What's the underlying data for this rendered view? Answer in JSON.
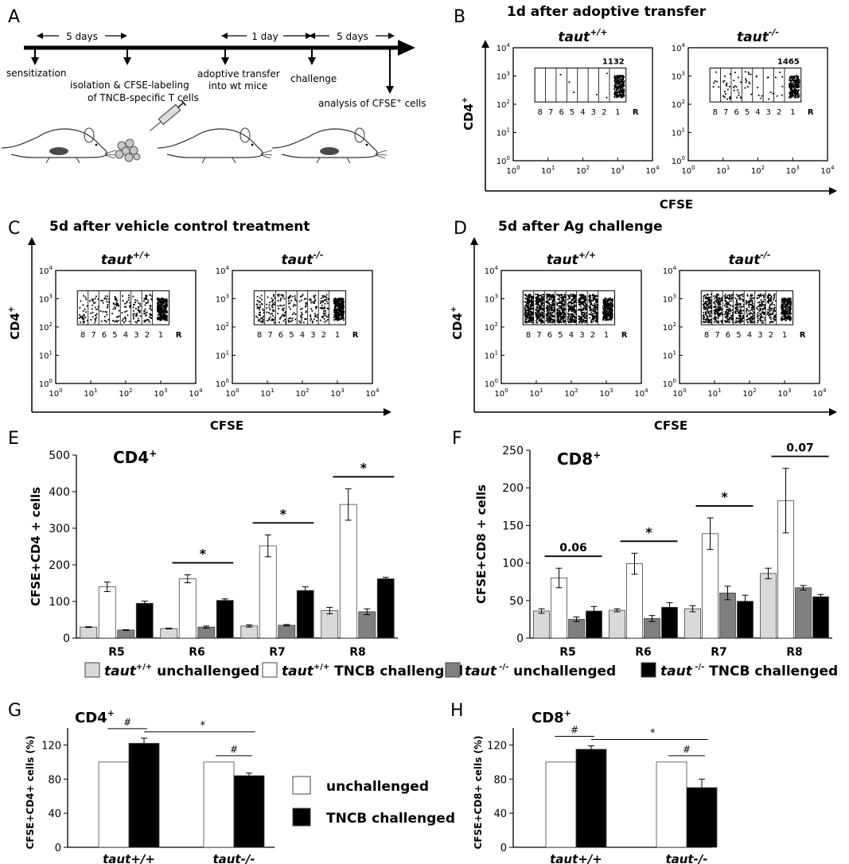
{
  "panels": {
    "A": {
      "letter": "A",
      "intervals": [
        "5 days",
        "1 day",
        "5 days"
      ],
      "steps": [
        "sensitization",
        "isolation & CFSE-labeling",
        "of TNCB-specific T cells",
        "adoptive transfer",
        "into wt mice",
        "challenge",
        "analysis of CFSE",
        "+",
        " cells"
      ]
    },
    "B": {
      "letter": "B",
      "title": "1d after adoptive transfer",
      "plots": [
        {
          "genotype": "taut",
          "sup": "+/+",
          "count": "1132",
          "density": [
            0,
            0,
            1,
            2,
            0,
            1,
            2,
            240
          ]
        },
        {
          "genotype": "taut",
          "sup": "-/-",
          "count": "1465",
          "density": [
            6,
            18,
            14,
            12,
            6,
            5,
            6,
            230
          ]
        }
      ]
    },
    "C": {
      "letter": "C",
      "title": "5d after vehicle control treatment",
      "plots": [
        {
          "genotype": "taut",
          "sup": "+/+",
          "count": "",
          "density": [
            30,
            28,
            26,
            30,
            26,
            36,
            50,
            320
          ]
        },
        {
          "genotype": "taut",
          "sup": "-/-",
          "count": "",
          "density": [
            45,
            40,
            38,
            32,
            30,
            32,
            50,
            300
          ]
        }
      ]
    },
    "D": {
      "letter": "D",
      "title": "5d after Ag challenge",
      "plots": [
        {
          "genotype": "taut",
          "sup": "+/+",
          "count": "",
          "density": [
            200,
            180,
            170,
            160,
            150,
            140,
            130,
            260
          ]
        },
        {
          "genotype": "taut",
          "sup": "-/-",
          "count": "",
          "density": [
            120,
            115,
            110,
            100,
            90,
            80,
            80,
            230
          ]
        }
      ]
    },
    "flow_axes": {
      "ylabel": "CD4",
      "ylabel_sup": "+",
      "xlabel": "CFSE",
      "decade_base": "10",
      "decade_exps": [
        "0",
        "1",
        "2",
        "3",
        "4"
      ],
      "gate_labels": [
        "8",
        "7",
        "6",
        "5",
        "4",
        "3",
        "2",
        "1"
      ],
      "residual_label": "R"
    },
    "E": {
      "letter": "E",
      "title": "CD4",
      "title_sup": "+",
      "ylabel": "CFSE+CD4 + cells",
      "sigs": [
        {
          "group": 1,
          "label": "*"
        },
        {
          "group": 2,
          "label": "*"
        },
        {
          "group": 3,
          "label": "*"
        }
      ]
    },
    "F": {
      "letter": "F",
      "title": "CD8",
      "title_sup": "+",
      "ylabel": "CFSE+CD8 + cells",
      "sigs": [
        {
          "group": 0,
          "label": "0.06"
        },
        {
          "group": 1,
          "label": "*"
        },
        {
          "group": 2,
          "label": "*"
        },
        {
          "group": 3,
          "label": "0.07"
        }
      ]
    },
    "G": {
      "letter": "G",
      "title": "CD4",
      "title_sup": "+",
      "ylabel": "CFSE+CD4+ cells (%)"
    },
    "H": {
      "letter": "H",
      "title": "CD8",
      "title_sup": "+",
      "ylabel": "CFSE+CD8+ cells (%)"
    }
  },
  "legend_EF": [
    {
      "genotype": "taut",
      "sup": "+/+",
      "text": " unchallenged",
      "color": "#d9d9d9"
    },
    {
      "genotype": "taut",
      "sup": "+/+",
      "text": " TNCB challenged",
      "color": "#ffffff"
    },
    {
      "genotype": "taut",
      "sup": " -/-",
      "text": " unchallenged",
      "color": "#7f7f7f"
    },
    {
      "genotype": "taut",
      "sup": " -/-",
      "text": " TNCB challenged",
      "color": "#000000"
    }
  ],
  "legend_GH": [
    {
      "text": "unchallenged",
      "color": "#ffffff"
    },
    {
      "text": "TNCB challenged",
      "color": "#000000"
    }
  ],
  "chart_data": [
    {
      "panel": "E",
      "type": "bar",
      "title": "CD4+",
      "ylabel": "CFSE+CD4 + cells",
      "ylim": [
        0,
        500
      ],
      "yticks": [
        0,
        100,
        200,
        300,
        400,
        500
      ],
      "categories": [
        "R5",
        "R6",
        "R7",
        "R8"
      ],
      "series": [
        {
          "name": "taut+/+ unchallenged",
          "color": "#d9d9d9",
          "values": [
            30,
            26,
            33,
            75
          ],
          "errors": [
            1,
            1,
            3,
            9
          ]
        },
        {
          "name": "taut+/+ TNCB challenged",
          "color": "#ffffff",
          "values": [
            140,
            162,
            252,
            365
          ],
          "errors": [
            13,
            11,
            30,
            43
          ]
        },
        {
          "name": "taut-/- unchallenged",
          "color": "#7f7f7f",
          "values": [
            22,
            30,
            35,
            72
          ],
          "errors": [
            1,
            3,
            2,
            8
          ]
        },
        {
          "name": "taut-/- TNCB challenged",
          "color": "#000000",
          "values": [
            95,
            103,
            130,
            162
          ],
          "errors": [
            6,
            4,
            10,
            4
          ]
        }
      ]
    },
    {
      "panel": "F",
      "type": "bar",
      "title": "CD8+",
      "ylabel": "CFSE+CD8 + cells",
      "ylim": [
        0,
        250
      ],
      "yticks": [
        0,
        50,
        100,
        150,
        200,
        250
      ],
      "categories": [
        "R5",
        "R6",
        "R7",
        "R8"
      ],
      "series": [
        {
          "name": "taut+/+ unchallenged",
          "color": "#d9d9d9",
          "values": [
            36,
            37,
            39,
            86
          ],
          "errors": [
            3,
            2,
            4,
            7
          ]
        },
        {
          "name": "taut+/+ TNCB challenged",
          "color": "#ffffff",
          "values": [
            80,
            99,
            139,
            183
          ],
          "errors": [
            13,
            14,
            21,
            43
          ]
        },
        {
          "name": "taut-/- unchallenged",
          "color": "#7f7f7f",
          "values": [
            25,
            26,
            60,
            67
          ],
          "errors": [
            3,
            4,
            9,
            3
          ]
        },
        {
          "name": "taut-/- TNCB challenged",
          "color": "#000000",
          "values": [
            36,
            41,
            49,
            55
          ],
          "errors": [
            6,
            6,
            8,
            3
          ]
        }
      ]
    },
    {
      "panel": "G",
      "type": "bar",
      "title": "CD4+",
      "ylabel": "CFSE+CD4+ cells (%)",
      "ylim": [
        0,
        140
      ],
      "yticks": [
        0,
        40,
        80,
        120
      ],
      "categories": [
        "taut+/+",
        "taut-/-"
      ],
      "series": [
        {
          "name": "unchallenged",
          "color": "#ffffff",
          "values": [
            100,
            100
          ],
          "errors": [
            0,
            0
          ]
        },
        {
          "name": "TNCB challenged",
          "color": "#000000",
          "values": [
            122,
            84
          ],
          "errors": [
            6,
            3
          ]
        }
      ],
      "annotations": [
        "#",
        "*",
        "#"
      ]
    },
    {
      "panel": "H",
      "type": "bar",
      "title": "CD8+",
      "ylabel": "CFSE+CD8+ cells (%)",
      "ylim": [
        0,
        140
      ],
      "yticks": [
        0,
        40,
        80,
        120
      ],
      "categories": [
        "taut+/+",
        "taut-/-"
      ],
      "series": [
        {
          "name": "unchallenged",
          "color": "#ffffff",
          "values": [
            100,
            100
          ],
          "errors": [
            0,
            0
          ]
        },
        {
          "name": "TNCB challenged",
          "color": "#000000",
          "values": [
            115,
            70
          ],
          "errors": [
            4,
            10
          ]
        }
      ],
      "annotations": [
        "#",
        "*",
        "#"
      ]
    }
  ]
}
